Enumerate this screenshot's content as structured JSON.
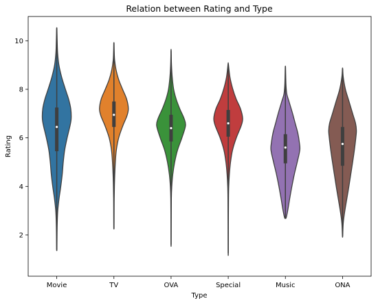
{
  "chart_data": {
    "type": "violin",
    "title": "Relation between Rating and Type",
    "xlabel": "Type",
    "ylabel": "Rating",
    "ylim": [
      0.3,
      11.0
    ],
    "yticks": [
      2,
      4,
      6,
      8,
      10
    ],
    "grid": false,
    "legend": "none",
    "categories": [
      "Movie",
      "TV",
      "OVA",
      "Special",
      "Music",
      "ONA"
    ],
    "colors": [
      "#3274a1",
      "#e1812c",
      "#3a923a",
      "#c03d3e",
      "#9372b2",
      "#845b53"
    ],
    "series": [
      {
        "min": 1.4,
        "max": 10.5,
        "q1": 5.45,
        "median": 6.45,
        "q3": 7.25,
        "profile": [
          [
            1.4,
            0.01
          ],
          [
            2.0,
            0.02
          ],
          [
            2.5,
            0.035
          ],
          [
            3.0,
            0.07
          ],
          [
            3.5,
            0.16
          ],
          [
            4.0,
            0.28
          ],
          [
            4.5,
            0.38
          ],
          [
            5.0,
            0.45
          ],
          [
            5.5,
            0.55
          ],
          [
            6.0,
            0.72
          ],
          [
            6.5,
            0.92
          ],
          [
            6.8,
            1.0
          ],
          [
            7.2,
            0.97
          ],
          [
            7.6,
            0.82
          ],
          [
            8.0,
            0.6
          ],
          [
            8.5,
            0.34
          ],
          [
            9.0,
            0.15
          ],
          [
            9.5,
            0.06
          ],
          [
            10.0,
            0.03
          ],
          [
            10.5,
            0.01
          ]
        ]
      },
      {
        "min": 2.3,
        "max": 9.9,
        "q1": 6.45,
        "median": 6.95,
        "q3": 7.5,
        "profile": [
          [
            2.3,
            0.01
          ],
          [
            3.0,
            0.015
          ],
          [
            3.5,
            0.02
          ],
          [
            4.0,
            0.035
          ],
          [
            4.5,
            0.06
          ],
          [
            5.0,
            0.1
          ],
          [
            5.5,
            0.17
          ],
          [
            6.0,
            0.33
          ],
          [
            6.5,
            0.62
          ],
          [
            6.9,
            0.9
          ],
          [
            7.2,
            1.0
          ],
          [
            7.6,
            0.88
          ],
          [
            8.0,
            0.6
          ],
          [
            8.4,
            0.33
          ],
          [
            8.8,
            0.15
          ],
          [
            9.2,
            0.05
          ],
          [
            9.6,
            0.02
          ],
          [
            9.9,
            0.01
          ]
        ]
      },
      {
        "min": 1.6,
        "max": 9.6,
        "q1": 5.85,
        "median": 6.4,
        "q3": 6.95,
        "profile": [
          [
            1.6,
            0.005
          ],
          [
            2.5,
            0.01
          ],
          [
            3.5,
            0.02
          ],
          [
            4.0,
            0.05
          ],
          [
            4.5,
            0.12
          ],
          [
            5.0,
            0.25
          ],
          [
            5.5,
            0.45
          ],
          [
            6.0,
            0.75
          ],
          [
            6.5,
            1.0
          ],
          [
            6.8,
            0.9
          ],
          [
            7.2,
            0.6
          ],
          [
            7.6,
            0.35
          ],
          [
            8.0,
            0.18
          ],
          [
            8.5,
            0.08
          ],
          [
            9.0,
            0.03
          ],
          [
            9.6,
            0.005
          ]
        ]
      },
      {
        "min": 1.25,
        "max": 9.05,
        "q1": 6.05,
        "median": 6.6,
        "q3": 7.15,
        "profile": [
          [
            1.25,
            0.005
          ],
          [
            2.5,
            0.01
          ],
          [
            3.5,
            0.02
          ],
          [
            4.0,
            0.035
          ],
          [
            4.5,
            0.08
          ],
          [
            5.0,
            0.16
          ],
          [
            5.5,
            0.3
          ],
          [
            6.0,
            0.56
          ],
          [
            6.5,
            0.9
          ],
          [
            6.8,
            1.0
          ],
          [
            7.2,
            0.85
          ],
          [
            7.6,
            0.55
          ],
          [
            8.0,
            0.32
          ],
          [
            8.5,
            0.12
          ],
          [
            9.05,
            0.01
          ]
        ]
      },
      {
        "min": 2.7,
        "max": 8.9,
        "q1": 4.95,
        "median": 5.6,
        "q3": 6.15,
        "profile": [
          [
            2.7,
            0.05
          ],
          [
            3.0,
            0.16
          ],
          [
            3.5,
            0.3
          ],
          [
            4.0,
            0.45
          ],
          [
            4.5,
            0.62
          ],
          [
            5.0,
            0.82
          ],
          [
            5.5,
            1.0
          ],
          [
            5.8,
            0.97
          ],
          [
            6.2,
            0.86
          ],
          [
            6.6,
            0.68
          ],
          [
            7.0,
            0.5
          ],
          [
            7.5,
            0.25
          ],
          [
            7.8,
            0.1
          ],
          [
            8.2,
            0.04
          ],
          [
            8.9,
            0.01
          ]
        ]
      },
      {
        "min": 1.95,
        "max": 8.85,
        "q1": 4.85,
        "median": 5.75,
        "q3": 6.45,
        "profile": [
          [
            1.95,
            0.01
          ],
          [
            2.5,
            0.05
          ],
          [
            3.0,
            0.16
          ],
          [
            3.5,
            0.3
          ],
          [
            4.0,
            0.44
          ],
          [
            4.5,
            0.57
          ],
          [
            5.0,
            0.7
          ],
          [
            5.5,
            0.82
          ],
          [
            6.0,
            0.92
          ],
          [
            6.3,
            0.96
          ],
          [
            6.6,
            0.9
          ],
          [
            7.0,
            0.7
          ],
          [
            7.5,
            0.45
          ],
          [
            8.0,
            0.2
          ],
          [
            8.5,
            0.05
          ],
          [
            8.85,
            0.01
          ]
        ]
      }
    ]
  }
}
